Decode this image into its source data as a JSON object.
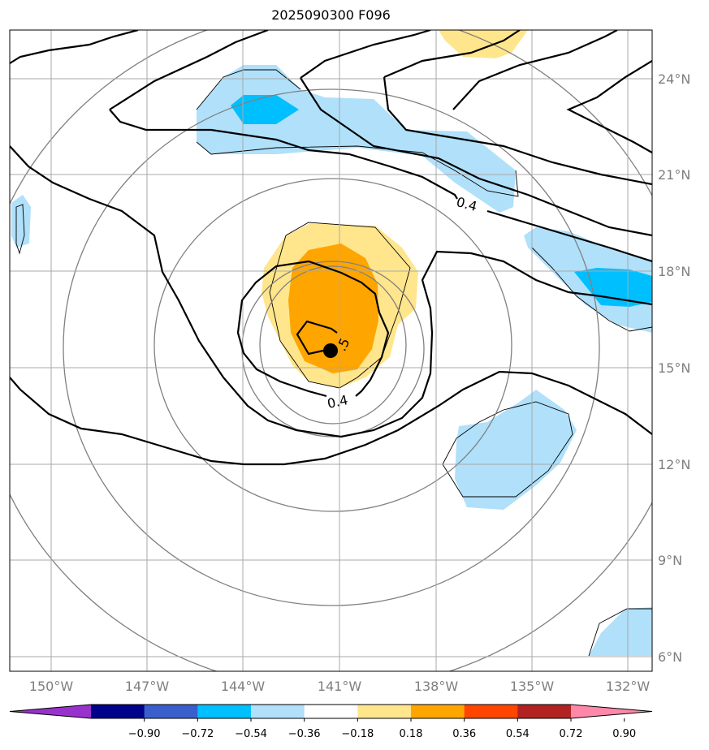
{
  "title": "2025090300 F096",
  "map": {
    "lon_labels": [
      "150°W",
      "147°W",
      "144°W",
      "141°W",
      "138°W",
      "135°W",
      "132°W"
    ],
    "lat_labels": [
      "24°N",
      "21°N",
      "18°N",
      "15°N",
      "12°N",
      "9°N",
      "6°N"
    ],
    "contour_labels": [
      "0.4",
      "0.4",
      ".5"
    ],
    "storm_center": "141°W 15.5°N"
  },
  "colorbar": {
    "ticks": [
      "−0.90",
      "−0.72",
      "−0.54",
      "−0.36",
      "−0.18",
      "0.18",
      "0.36",
      "0.54",
      "0.72",
      "0.90"
    ],
    "colors": [
      "#9932cc",
      "#00008b",
      "#3a5fcd",
      "#00bfff",
      "#b0e0fa",
      "#ffffff",
      "#ffe68c",
      "#ffa500",
      "#ff4500",
      "#b22222",
      "#ff88aa"
    ]
  }
}
